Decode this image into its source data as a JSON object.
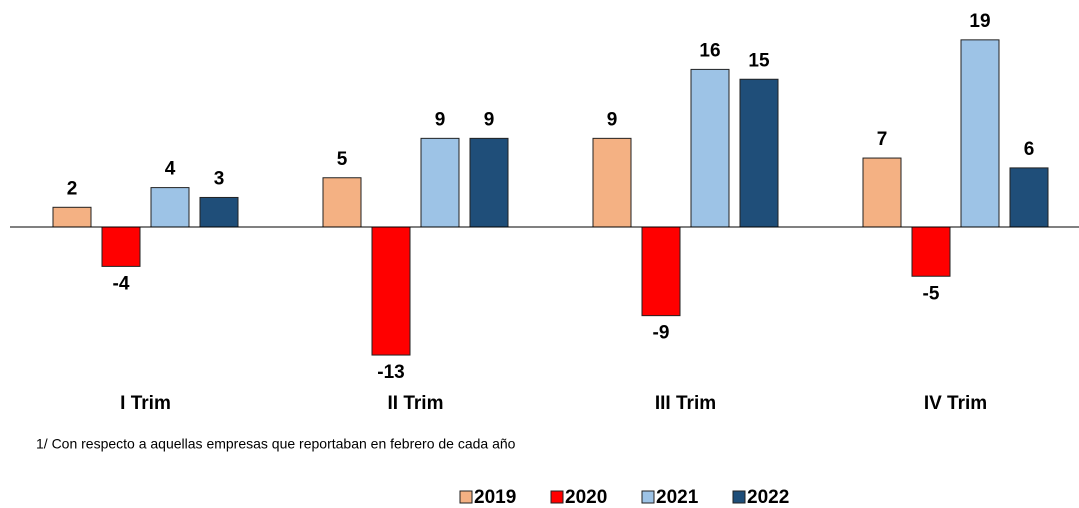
{
  "chart_data": {
    "type": "bar",
    "categories": [
      "I Trim",
      "II Trim",
      "III Trim",
      "IV Trim"
    ],
    "series": [
      {
        "name": "2019",
        "color": "#f4b183",
        "values": [
          2,
          5,
          9,
          7
        ]
      },
      {
        "name": "2020",
        "color": "#ff0000",
        "values": [
          -4,
          -13,
          -9,
          -5
        ]
      },
      {
        "name": "2021",
        "color": "#9dc3e6",
        "values": [
          4,
          9,
          16,
          19
        ]
      },
      {
        "name": "2022",
        "color": "#1f4e79",
        "values": [
          3,
          9,
          15,
          6
        ]
      }
    ],
    "footnote": "1/ Con respecto a aquellas empresas que reportaban en febrero de cada año",
    "legend": "bottom"
  }
}
